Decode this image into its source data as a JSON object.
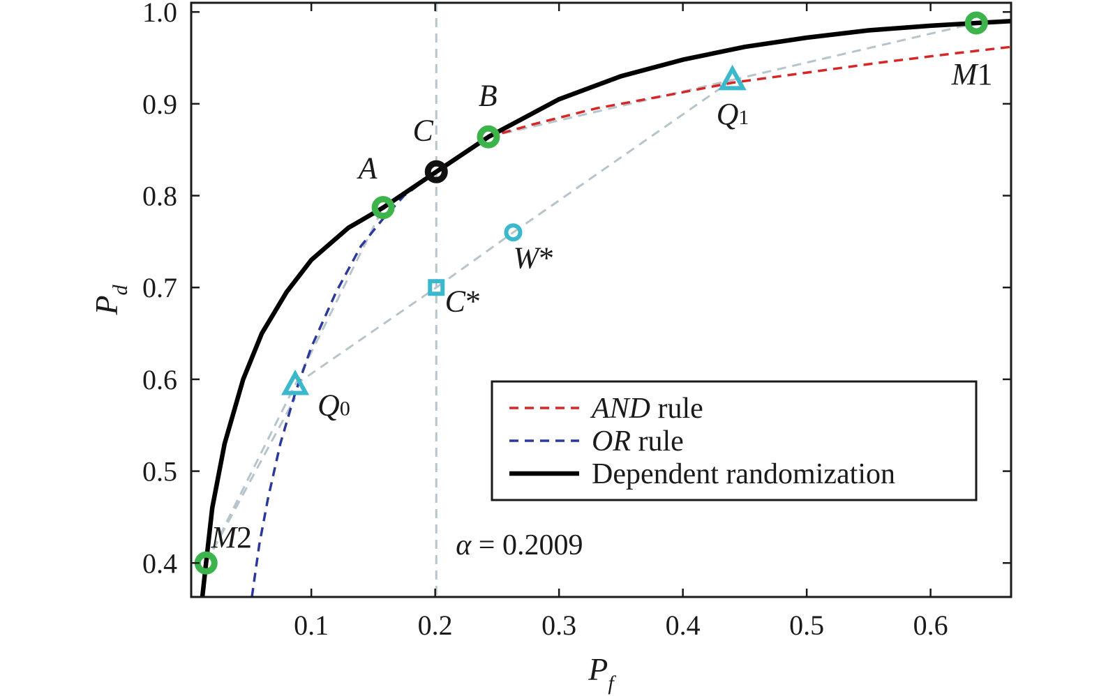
{
  "chart_data": {
    "type": "line",
    "xlabel": "P",
    "xlabel_sub": "f",
    "ylabel": "P",
    "ylabel_sub": "d",
    "xlim": [
      0.003,
      0.665
    ],
    "ylim": [
      0.363,
      1.01
    ],
    "xticks": [
      0.1,
      0.2,
      0.3,
      0.4,
      0.5,
      0.6
    ],
    "xtick_labels": [
      "0.1",
      "0.2",
      "0.3",
      "0.4",
      "0.5",
      "0.6"
    ],
    "yticks": [
      0.4,
      0.5,
      0.6,
      0.7,
      0.8,
      0.9,
      1.0
    ],
    "ytick_labels": [
      "0.4",
      "0.5",
      "0.6",
      "0.7",
      "0.8",
      "0.9",
      "1.0"
    ],
    "grid": false,
    "legend_position": "lower-right",
    "series": [
      {
        "name": "AND rule",
        "name_italic": "AND",
        "name_rest": " rule",
        "style": "dashed",
        "color": "#d62728",
        "x": [
          0.2009,
          0.215,
          0.243,
          0.28,
          0.33,
          0.39,
          0.44,
          0.5,
          0.56,
          0.62,
          0.665
        ],
        "y": [
          0.826,
          0.84,
          0.864,
          0.878,
          0.895,
          0.91,
          0.923,
          0.934,
          0.945,
          0.955,
          0.962
        ]
      },
      {
        "name": "OR rule",
        "name_italic": "OR",
        "name_rest": " rule",
        "style": "dashed",
        "color": "#2b3a9a",
        "x": [
          0.052,
          0.058,
          0.065,
          0.075,
          0.087,
          0.1,
          0.12,
          0.14,
          0.158,
          0.175,
          0.19,
          0.2009
        ],
        "y": [
          0.363,
          0.42,
          0.47,
          0.53,
          0.585,
          0.635,
          0.695,
          0.745,
          0.775,
          0.8,
          0.815,
          0.826
        ]
      },
      {
        "name": "Dependent randomization",
        "name_italic": "",
        "name_rest": "Dependent randomization",
        "style": "solid",
        "color": "#000000",
        "x": [
          0.012,
          0.015,
          0.02,
          0.03,
          0.045,
          0.06,
          0.08,
          0.1,
          0.13,
          0.158,
          0.2009,
          0.243,
          0.3,
          0.35,
          0.4,
          0.45,
          0.5,
          0.55,
          0.6,
          0.637,
          0.665
        ],
        "y": [
          0.363,
          0.4,
          0.46,
          0.53,
          0.6,
          0.65,
          0.695,
          0.73,
          0.765,
          0.787,
          0.826,
          0.864,
          0.905,
          0.93,
          0.948,
          0.962,
          0.972,
          0.98,
          0.985,
          0.988,
          0.99
        ]
      }
    ],
    "guide_lines": [
      {
        "x": [
          0.015,
          0.087
        ],
        "y": [
          0.4,
          0.594
        ]
      },
      {
        "x": [
          0.087,
          0.158
        ],
        "y": [
          0.594,
          0.787
        ]
      },
      {
        "x": [
          0.087,
          0.2009
        ],
        "y": [
          0.594,
          0.7
        ]
      },
      {
        "x": [
          0.2009,
          0.263
        ],
        "y": [
          0.7,
          0.76
        ]
      },
      {
        "x": [
          0.263,
          0.44
        ],
        "y": [
          0.76,
          0.926
        ]
      },
      {
        "x": [
          0.243,
          0.44
        ],
        "y": [
          0.864,
          0.926
        ]
      },
      {
        "x": [
          0.44,
          0.637
        ],
        "y": [
          0.926,
          0.988
        ]
      },
      {
        "x": [
          0.015,
          0.087
        ],
        "y": [
          0.4,
          0.58
        ]
      }
    ],
    "guide_color": "#b8c4cc",
    "alpha_line": {
      "x": 0.2009,
      "label_symbol": "α",
      "label_value": " = 0.2009",
      "label_y": 0.42
    },
    "points": [
      {
        "label": "M",
        "label_rest": "2",
        "x": 0.015,
        "y": 0.4,
        "marker": "circle",
        "color": "#3cb44b",
        "dx": 0.004,
        "dy": 0.017
      },
      {
        "label": "A",
        "label_rest": "",
        "x": 0.158,
        "y": 0.787,
        "marker": "circle",
        "color": "#3cb44b",
        "dx": -0.02,
        "dy": 0.032
      },
      {
        "label": "C",
        "label_rest": "",
        "x": 0.2009,
        "y": 0.826,
        "marker": "circle",
        "color": "#111111",
        "dx": -0.019,
        "dy": 0.034
      },
      {
        "label": "B",
        "label_rest": "",
        "x": 0.243,
        "y": 0.864,
        "marker": "circle",
        "color": "#3cb44b",
        "dx": -0.008,
        "dy": 0.034
      },
      {
        "label": "M",
        "label_rest": "1",
        "x": 0.637,
        "y": 0.988,
        "marker": "circle",
        "color": "#3cb44b",
        "dx": -0.02,
        "dy": -0.067
      },
      {
        "label": "Q",
        "label_sub": "1",
        "x": 0.44,
        "y": 0.926,
        "marker": "triangle",
        "color": "#3bb8cc",
        "dx": -0.013,
        "dy": -0.048
      },
      {
        "label": "Q",
        "label_sub": "0",
        "x": 0.087,
        "y": 0.594,
        "marker": "triangle",
        "color": "#3bb8cc",
        "dx": 0.018,
        "dy": -0.033
      },
      {
        "label": "C",
        "label_rest": "*",
        "x": 0.2009,
        "y": 0.7,
        "marker": "square",
        "color": "#3bb8cc",
        "dx": 0.007,
        "dy": -0.026
      },
      {
        "label": "W",
        "label_rest": "*",
        "x": 0.263,
        "y": 0.76,
        "marker": "ring",
        "color": "#3bb8cc",
        "dx": 0.0,
        "dy": -0.039
      }
    ]
  }
}
